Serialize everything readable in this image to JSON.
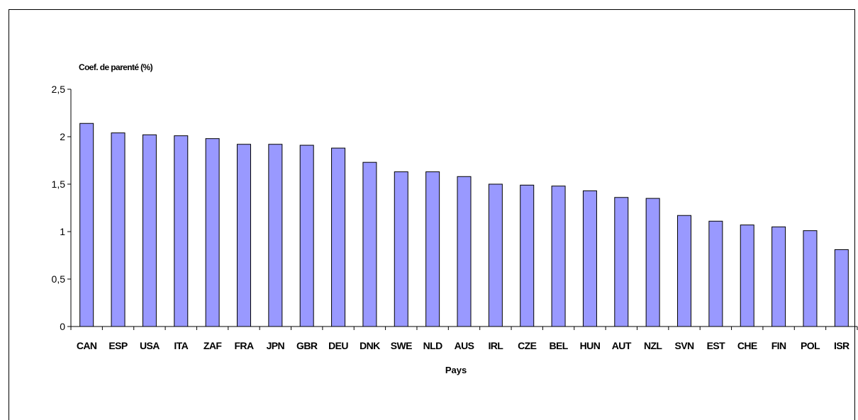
{
  "chart_data": {
    "type": "bar",
    "title": "",
    "ylabel": "Coef. de parenté (%)",
    "xlabel": "Pays",
    "ylim": [
      0,
      2.5
    ],
    "yticks": [
      "0",
      "0,5",
      "1",
      "1,5",
      "2",
      "2,5"
    ],
    "ytick_values": [
      0,
      0.5,
      1,
      1.5,
      2,
      2.5
    ],
    "grid": false,
    "legend": "none",
    "bar_color": "#9999FF",
    "categories": [
      "CAN",
      "ESP",
      "USA",
      "ITA",
      "ZAF",
      "FRA",
      "JPN",
      "GBR",
      "DEU",
      "DNK",
      "SWE",
      "NLD",
      "AUS",
      "IRL",
      "CZE",
      "BEL",
      "HUN",
      "AUT",
      "NZL",
      "SVN",
      "EST",
      "CHE",
      "FIN",
      "POL",
      "ISR"
    ],
    "values": [
      2.14,
      2.04,
      2.02,
      2.01,
      1.98,
      1.92,
      1.92,
      1.91,
      1.88,
      1.73,
      1.63,
      1.63,
      1.58,
      1.5,
      1.49,
      1.48,
      1.43,
      1.36,
      1.35,
      1.17,
      1.11,
      1.07,
      1.05,
      1.01,
      0.81
    ]
  }
}
